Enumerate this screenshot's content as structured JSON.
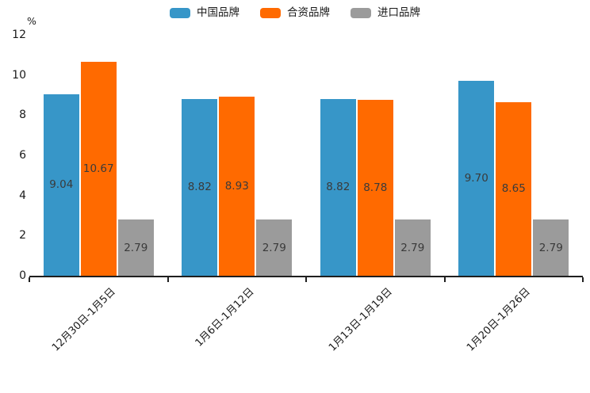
{
  "chart_data": {
    "type": "bar",
    "title": "",
    "xlabel": "",
    "ylabel": "%",
    "categories": [
      "12月30日-1月5日",
      "1月6日-1月12日",
      "1月13日-1月19日",
      "1月20日-1月26日"
    ],
    "series": [
      {
        "name": "中国品牌",
        "color": "#3796C8",
        "values": [
          9.04,
          8.82,
          8.82,
          9.7
        ]
      },
      {
        "name": "合资品牌",
        "color": "#FF6A00",
        "values": [
          10.67,
          8.93,
          8.78,
          8.65
        ]
      },
      {
        "name": "进口品牌",
        "color": "#9B9B9B",
        "values": [
          2.79,
          2.79,
          2.79,
          2.79
        ]
      }
    ],
    "ylim": [
      0,
      12
    ],
    "yticks": [
      0,
      2,
      4,
      6,
      8,
      10,
      12
    ],
    "legend_position": "top-center",
    "value_label_format": "2-decimals-inside-bar",
    "grid": "off",
    "axis_color": "#1f1f1f",
    "value_label_color": "#3a3a3a"
  }
}
